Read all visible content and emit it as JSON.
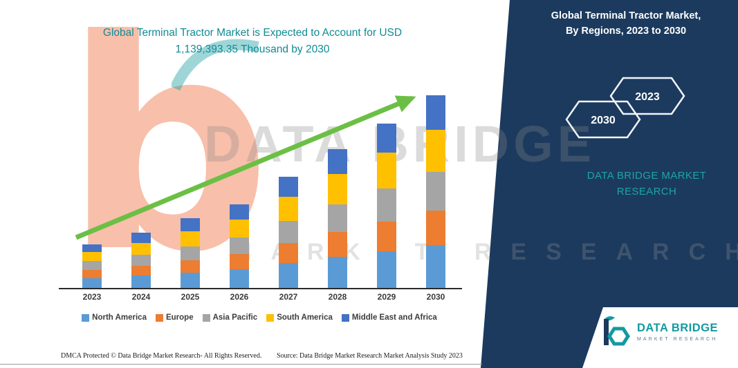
{
  "page": {
    "title_line1": "Global Terminal Tractor Market is Expected to Account for USD",
    "title_line2": "1,139,393.35 Thousand by 2030"
  },
  "panel": {
    "bg_color": "#1c3a5e",
    "title_line1": "Global Terminal Tractor Market,",
    "title_line2": "By Regions, 2023 to 2030",
    "hexagons": [
      "2030",
      "2023"
    ],
    "brand_line1": "DATA BRIDGE MARKET",
    "brand_line2": "RESEARCH"
  },
  "logo": {
    "name": "DATA BRIDGE",
    "subtitle": "MARKET RESEARCH"
  },
  "watermark": {
    "letter_b": "b",
    "big_text": "DATA BRIDGE",
    "spaced_text": "MARKET RESEARCH"
  },
  "footer": {
    "dmca": "DMCA Protected © Data Bridge Market Research-  All Rights Reserved.",
    "source": "Source: Data Bridge Market Research  Market Analysis Study 2023"
  },
  "chart_data": {
    "type": "bar",
    "stacked": true,
    "title": "Global Terminal Tractor Market is Expected to Account for USD 1,139,393.35 Thousand by 2030",
    "units": "USD Thousand (segment values estimated from bar heights; 2030 total matches stated 1,139,393.35)",
    "categories": [
      "2023",
      "2024",
      "2025",
      "2026",
      "2027",
      "2028",
      "2029",
      "2030"
    ],
    "series": [
      {
        "name": "North America",
        "color": "#5b9bd5",
        "values": [
          57180,
          73516,
          89852,
          110273,
          147031,
          183789,
          216463,
          253220
        ]
      },
      {
        "name": "Europe",
        "color": "#ed7d31",
        "values": [
          49010,
          57179,
          73516,
          89852,
          118442,
          147031,
          175621,
          204210
        ]
      },
      {
        "name": "Asia Pacific",
        "color": "#a5a5a5",
        "values": [
          53095,
          65347,
          81684,
          98021,
          130694,
          163368,
          196042,
          228715
        ]
      },
      {
        "name": "South America",
        "color": "#ffc000",
        "values": [
          53095,
          69432,
          89852,
          106189,
          142947,
          179705,
          212379,
          249136
        ]
      },
      {
        "name": "Middle East and Africa",
        "color": "#4472c4",
        "values": [
          44926,
          61263,
          77600,
          89852,
          118442,
          147031,
          171536,
          204112.35
        ]
      }
    ],
    "totals_estimated": [
      257306,
      326737,
      412504,
      494187,
      657556,
      820924,
      972041,
      1139393.35
    ],
    "xlabel": "",
    "ylabel": "",
    "grid": false,
    "legend_position": "bottom",
    "trend_arrow": {
      "show": true,
      "color": "#6cbf45",
      "direction": "up-right"
    }
  }
}
